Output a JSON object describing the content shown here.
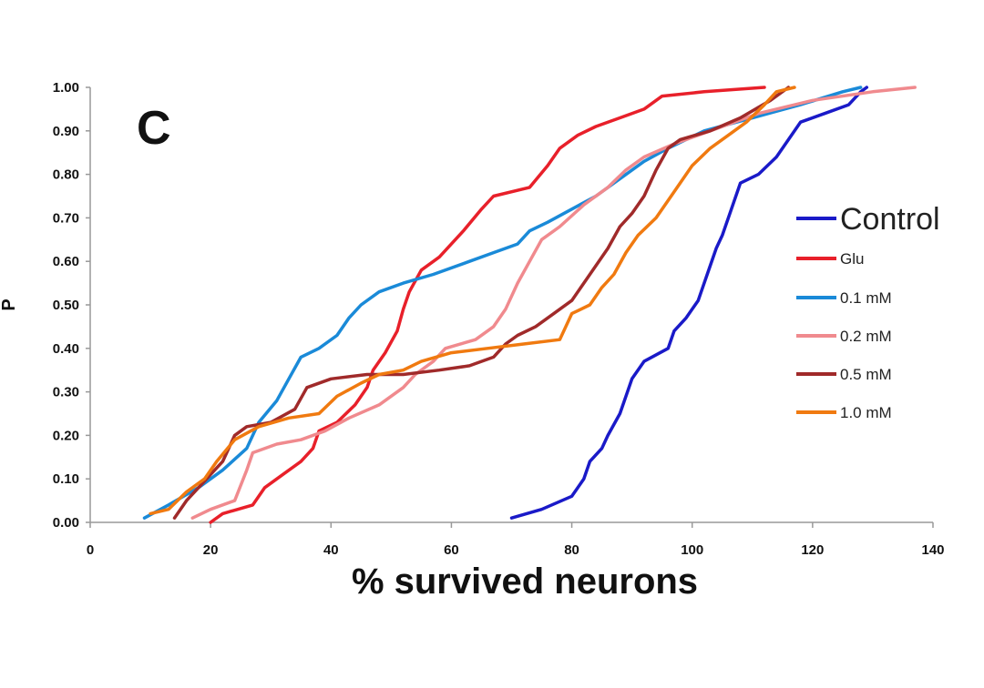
{
  "chart_data": {
    "type": "line",
    "panel_label": "C",
    "xlabel": "% survived neurons",
    "ylabel": "P",
    "xlim": [
      0,
      140
    ],
    "ylim": [
      0,
      1
    ],
    "x_ticks": [
      "0",
      "20",
      "40",
      "60",
      "80",
      "100",
      "120",
      "140"
    ],
    "y_ticks": [
      "0.00",
      "0.10",
      "0.20",
      "0.30",
      "0.40",
      "0.50",
      "0.60",
      "0.70",
      "0.80",
      "0.90",
      "1.00"
    ],
    "grid": false,
    "legend_position": "right",
    "series": [
      {
        "name": "Control",
        "color": "#1a1ac8",
        "points": [
          [
            70,
            0.01
          ],
          [
            75,
            0.03
          ],
          [
            80,
            0.06
          ],
          [
            82,
            0.1
          ],
          [
            83,
            0.14
          ],
          [
            85,
            0.17
          ],
          [
            86,
            0.2
          ],
          [
            88,
            0.25
          ],
          [
            89,
            0.29
          ],
          [
            90,
            0.33
          ],
          [
            92,
            0.37
          ],
          [
            96,
            0.4
          ],
          [
            97,
            0.44
          ],
          [
            99,
            0.47
          ],
          [
            101,
            0.51
          ],
          [
            102,
            0.55
          ],
          [
            103,
            0.59
          ],
          [
            104,
            0.63
          ],
          [
            105,
            0.66
          ],
          [
            106,
            0.7
          ],
          [
            107,
            0.74
          ],
          [
            108,
            0.78
          ],
          [
            111,
            0.8
          ],
          [
            114,
            0.84
          ],
          [
            116,
            0.88
          ],
          [
            118,
            0.92
          ],
          [
            122,
            0.94
          ],
          [
            126,
            0.96
          ],
          [
            128,
            0.99
          ],
          [
            129,
            1.0
          ]
        ]
      },
      {
        "name": "Glu",
        "color": "#e8202a",
        "points": [
          [
            20,
            0.0
          ],
          [
            22,
            0.02
          ],
          [
            27,
            0.04
          ],
          [
            29,
            0.08
          ],
          [
            32,
            0.11
          ],
          [
            35,
            0.14
          ],
          [
            37,
            0.17
          ],
          [
            38,
            0.21
          ],
          [
            41,
            0.23
          ],
          [
            44,
            0.27
          ],
          [
            46,
            0.31
          ],
          [
            47,
            0.35
          ],
          [
            49,
            0.39
          ],
          [
            51,
            0.44
          ],
          [
            52,
            0.49
          ],
          [
            53,
            0.53
          ],
          [
            55,
            0.58
          ],
          [
            58,
            0.61
          ],
          [
            60,
            0.64
          ],
          [
            62,
            0.67
          ],
          [
            65,
            0.72
          ],
          [
            67,
            0.75
          ],
          [
            73,
            0.77
          ],
          [
            76,
            0.82
          ],
          [
            78,
            0.86
          ],
          [
            81,
            0.89
          ],
          [
            84,
            0.91
          ],
          [
            88,
            0.93
          ],
          [
            92,
            0.95
          ],
          [
            95,
            0.98
          ],
          [
            102,
            0.99
          ],
          [
            112,
            1.0
          ]
        ]
      },
      {
        "name": "0.1 mM",
        "color": "#1a8ad8",
        "points": [
          [
            9,
            0.01
          ],
          [
            13,
            0.04
          ],
          [
            18,
            0.08
          ],
          [
            22,
            0.12
          ],
          [
            26,
            0.17
          ],
          [
            28,
            0.23
          ],
          [
            31,
            0.28
          ],
          [
            33,
            0.33
          ],
          [
            35,
            0.38
          ],
          [
            38,
            0.4
          ],
          [
            41,
            0.43
          ],
          [
            43,
            0.47
          ],
          [
            45,
            0.5
          ],
          [
            48,
            0.53
          ],
          [
            52,
            0.55
          ],
          [
            57,
            0.57
          ],
          [
            63,
            0.6
          ],
          [
            67,
            0.62
          ],
          [
            71,
            0.64
          ],
          [
            73,
            0.67
          ],
          [
            76,
            0.69
          ],
          [
            80,
            0.72
          ],
          [
            84,
            0.75
          ],
          [
            88,
            0.79
          ],
          [
            92,
            0.83
          ],
          [
            96,
            0.86
          ],
          [
            102,
            0.9
          ],
          [
            110,
            0.93
          ],
          [
            118,
            0.96
          ],
          [
            125,
            0.99
          ],
          [
            128,
            1.0
          ]
        ]
      },
      {
        "name": "0.2 mM",
        "color": "#f08a8e",
        "points": [
          [
            17,
            0.01
          ],
          [
            20,
            0.03
          ],
          [
            24,
            0.05
          ],
          [
            26,
            0.12
          ],
          [
            27,
            0.16
          ],
          [
            31,
            0.18
          ],
          [
            35,
            0.19
          ],
          [
            39,
            0.21
          ],
          [
            43,
            0.24
          ],
          [
            48,
            0.27
          ],
          [
            52,
            0.31
          ],
          [
            54,
            0.34
          ],
          [
            57,
            0.37
          ],
          [
            59,
            0.4
          ],
          [
            64,
            0.42
          ],
          [
            67,
            0.45
          ],
          [
            69,
            0.49
          ],
          [
            71,
            0.55
          ],
          [
            73,
            0.6
          ],
          [
            75,
            0.65
          ],
          [
            78,
            0.68
          ],
          [
            82,
            0.73
          ],
          [
            86,
            0.77
          ],
          [
            89,
            0.81
          ],
          [
            92,
            0.84
          ],
          [
            97,
            0.87
          ],
          [
            103,
            0.9
          ],
          [
            111,
            0.94
          ],
          [
            120,
            0.97
          ],
          [
            130,
            0.99
          ],
          [
            137,
            1.0
          ]
        ]
      },
      {
        "name": "0.5 mM",
        "color": "#a02a2a",
        "points": [
          [
            14,
            0.01
          ],
          [
            16,
            0.05
          ],
          [
            18,
            0.08
          ],
          [
            20,
            0.11
          ],
          [
            22,
            0.14
          ],
          [
            24,
            0.2
          ],
          [
            26,
            0.22
          ],
          [
            30,
            0.23
          ],
          [
            34,
            0.26
          ],
          [
            36,
            0.31
          ],
          [
            40,
            0.33
          ],
          [
            46,
            0.34
          ],
          [
            52,
            0.34
          ],
          [
            58,
            0.35
          ],
          [
            63,
            0.36
          ],
          [
            67,
            0.38
          ],
          [
            69,
            0.41
          ],
          [
            71,
            0.43
          ],
          [
            74,
            0.45
          ],
          [
            77,
            0.48
          ],
          [
            80,
            0.51
          ],
          [
            82,
            0.55
          ],
          [
            84,
            0.59
          ],
          [
            86,
            0.63
          ],
          [
            88,
            0.68
          ],
          [
            90,
            0.71
          ],
          [
            92,
            0.75
          ],
          [
            94,
            0.81
          ],
          [
            96,
            0.86
          ],
          [
            98,
            0.88
          ],
          [
            103,
            0.9
          ],
          [
            108,
            0.93
          ],
          [
            113,
            0.97
          ],
          [
            116,
            1.0
          ]
        ]
      },
      {
        "name": "1.0 mM",
        "color": "#f07a10",
        "points": [
          [
            10,
            0.02
          ],
          [
            13,
            0.03
          ],
          [
            16,
            0.07
          ],
          [
            19,
            0.1
          ],
          [
            21,
            0.14
          ],
          [
            24,
            0.19
          ],
          [
            28,
            0.22
          ],
          [
            33,
            0.24
          ],
          [
            38,
            0.25
          ],
          [
            41,
            0.29
          ],
          [
            45,
            0.32
          ],
          [
            48,
            0.34
          ],
          [
            52,
            0.35
          ],
          [
            55,
            0.37
          ],
          [
            60,
            0.39
          ],
          [
            66,
            0.4
          ],
          [
            72,
            0.41
          ],
          [
            78,
            0.42
          ],
          [
            80,
            0.48
          ],
          [
            83,
            0.5
          ],
          [
            85,
            0.54
          ],
          [
            87,
            0.57
          ],
          [
            89,
            0.62
          ],
          [
            91,
            0.66
          ],
          [
            94,
            0.7
          ],
          [
            97,
            0.76
          ],
          [
            100,
            0.82
          ],
          [
            103,
            0.86
          ],
          [
            106,
            0.89
          ],
          [
            109,
            0.92
          ],
          [
            112,
            0.96
          ],
          [
            114,
            0.99
          ],
          [
            117,
            1.0
          ]
        ]
      }
    ]
  }
}
